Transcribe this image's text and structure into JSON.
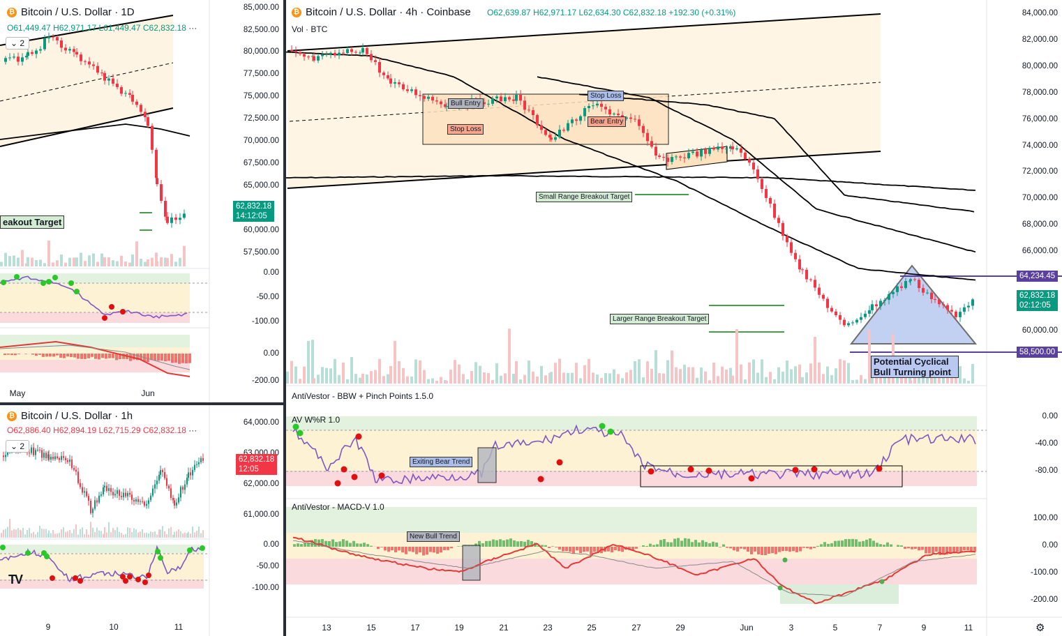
{
  "colors": {
    "up": "#089981",
    "down": "#f23645",
    "accent": "#2962ff",
    "btc": "#f7931a",
    "wr_line": "#7e57c2",
    "purple_level": "#5b3fa0"
  },
  "left_top": {
    "title": "Bitcoin / U.S. Dollar · 1D",
    "ohlc": {
      "o": "O61,449.47",
      "h": "H62,971.17",
      "l": "L61,449.47",
      "c": "C62,832.18"
    },
    "more": "···",
    "collapse_count": "2",
    "yaxis": [
      "85,000.00",
      "82,500.00",
      "80,000.00",
      "77,500.00",
      "75,000.00",
      "72,500.00",
      "70,000.00",
      "67,500.00",
      "65,000.00",
      "62,500.00",
      "60,000.00",
      "57,500.00"
    ],
    "price_tag": "62,832.18",
    "countdown": "14:12:05",
    "annotation": "eakout Target",
    "wr_axis": [
      "0.00",
      "-50.00",
      "-100.00"
    ],
    "macd_axis": [
      "0.00",
      "-200.00"
    ],
    "xaxis": [
      "May",
      "Jun"
    ]
  },
  "left_bottom": {
    "title": "Bitcoin / U.S. Dollar · 1h",
    "ohlc": {
      "o": "O62,886.40",
      "h": "H62,894.19",
      "l": "L62,715.29",
      "c": "C62,832.18"
    },
    "more": "···",
    "collapse_count": "2",
    "yaxis": [
      "64,000.00",
      "63,000.00",
      "62,000.00",
      "61,000.00"
    ],
    "price_tag": "62,832.18",
    "countdown": "12:05",
    "wr_axis": [
      "0.00",
      "-50.00",
      "-100.00"
    ],
    "xaxis": [
      "9",
      "10",
      "11"
    ],
    "logo": "TV"
  },
  "main": {
    "title": "Bitcoin / U.S. Dollar · 4h · Coinbase",
    "ohlc": {
      "o": "O62,639.87",
      "h": "H62,971.17",
      "l": "L62,634.30",
      "c": "C62,832.18",
      "chg": "+192.30 (+0.31%)"
    },
    "vol_label": "Vol · BTC",
    "yaxis": [
      "84,000.00",
      "82,000.00",
      "80,000.00",
      "78,000.00",
      "76,000.00",
      "74,000.00",
      "72,000.00",
      "70,000.00",
      "68,000.00",
      "66,000.00",
      "64,000.00",
      "62,000.00",
      "60,000.00",
      "58,000.00"
    ],
    "price_tag": "62,832.18",
    "countdown": "02:12:05",
    "level_high": "64,234.45",
    "level_low": "58,500.00",
    "notes": {
      "bull_entry": "Bull Entry",
      "stop_loss_a": "Stop Loss",
      "stop_loss_b": "Stop Loss",
      "bear_entry": "Bear Entry",
      "small_target": "Small Range Breakout Target",
      "larger_target": "Larger Range Breakout Target",
      "turning_point": "Potential Cyclical Bull Turning point",
      "exiting_bear": "Exiting Bear Trend",
      "new_bull": "New Bull Trend"
    },
    "bbw_label": "AntiVestor - BBW + Pinch Points 1.5.0",
    "wr_label": "AV W%R 1.0",
    "wr_axis": [
      "0.00",
      "-40.00",
      "-80.00"
    ],
    "macd_label": "AntiVestor - MACD-V 1.0",
    "macd_axis": [
      "100.00",
      "0.00",
      "-100.00",
      "-200.00"
    ],
    "xaxis": [
      "13",
      "15",
      "17",
      "19",
      "21",
      "23",
      "25",
      "27",
      "29",
      "Jun",
      "3",
      "5",
      "7",
      "9",
      "11",
      "13"
    ],
    "settings_icon": "gear-icon"
  }
}
